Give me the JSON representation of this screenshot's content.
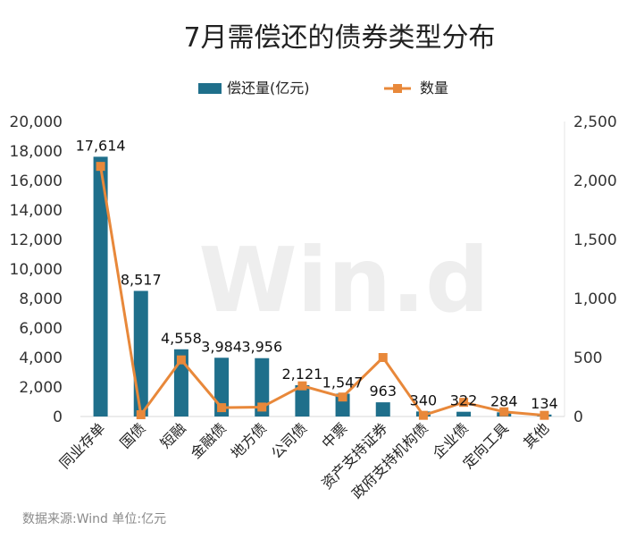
{
  "chart_data": {
    "type": "bar",
    "title": "7月需偿还的债券类型分布",
    "categories": [
      "同业存单",
      "国债",
      "短融",
      "金融债",
      "地方债",
      "公司债",
      "中票",
      "资产支持证券",
      "政府支持机构债",
      "企业债",
      "定向工具",
      "其他"
    ],
    "series": [
      {
        "name": "偿还量(亿元)",
        "type": "bar",
        "axis": "left",
        "color": "#1f6f8b",
        "values": [
          17614,
          8517,
          4558,
          3984,
          3956,
          2121,
          1547,
          963,
          340,
          322,
          284,
          134
        ],
        "labels": [
          "17,614",
          "8,517",
          "4,558",
          "3,984",
          "3,956",
          "2,121",
          "1,547",
          "963",
          "340",
          "322",
          "284",
          "134"
        ]
      },
      {
        "name": "数量",
        "type": "line",
        "axis": "right",
        "color": "#e8883a",
        "values": [
          2120,
          15,
          480,
          75,
          80,
          260,
          165,
          500,
          10,
          120,
          40,
          10
        ]
      }
    ],
    "y_left": {
      "min": 0,
      "max": 20000,
      "ticks": [
        0,
        2000,
        4000,
        6000,
        8000,
        10000,
        12000,
        14000,
        16000,
        18000,
        20000
      ],
      "tick_labels": [
        "0",
        "2,000",
        "4,000",
        "6,000",
        "8,000",
        "10,000",
        "12,000",
        "14,000",
        "16,000",
        "18,000",
        "20,000"
      ]
    },
    "y_right": {
      "min": 0,
      "max": 2500,
      "ticks": [
        0,
        500,
        1000,
        1500,
        2000,
        2500
      ],
      "tick_labels": [
        "0",
        "500",
        "1,000",
        "1,500",
        "2,000",
        "2,500"
      ]
    },
    "legend_position": "top-center",
    "grid": false,
    "watermark": "Win.d",
    "source_note": "数据来源:Wind   单位:亿元"
  }
}
